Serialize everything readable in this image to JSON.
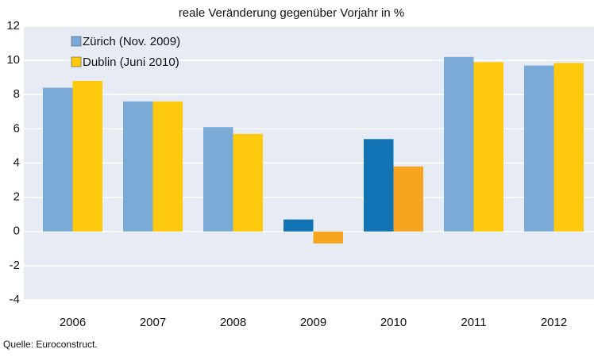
{
  "chart_data": {
    "type": "bar",
    "title": "reale Veränderung gegenüber Vorjahr in %",
    "source": "Quelle: Euroconstruct.",
    "categories": [
      "2006",
      "2007",
      "2008",
      "2009",
      "2010",
      "2011",
      "2012"
    ],
    "series": [
      {
        "name": "Zürich (Nov. 2009)",
        "color": "#7aaad6",
        "colors": [
          "#7aaad6",
          "#7aaad6",
          "#7aaad6",
          "#1274b4",
          "#1274b4",
          "#7aaad6",
          "#7aaad6"
        ],
        "values": [
          8.4,
          7.6,
          6.1,
          0.7,
          5.4,
          10.2,
          9.7
        ]
      },
      {
        "name": "Dublin (Juni 2010)",
        "color": "#ffc90e",
        "colors": [
          "#ffc90e",
          "#ffc90e",
          "#ffc90e",
          "#f7a520",
          "#f7a520",
          "#ffc90e",
          "#ffc90e"
        ],
        "values": [
          8.8,
          7.6,
          5.7,
          -0.7,
          3.8,
          9.9,
          9.85
        ]
      }
    ],
    "ylim": [
      -4,
      12
    ],
    "yticks": [
      -4,
      -2,
      0,
      2,
      4,
      6,
      8,
      10,
      12
    ],
    "grid": true,
    "legend": "top-left"
  }
}
